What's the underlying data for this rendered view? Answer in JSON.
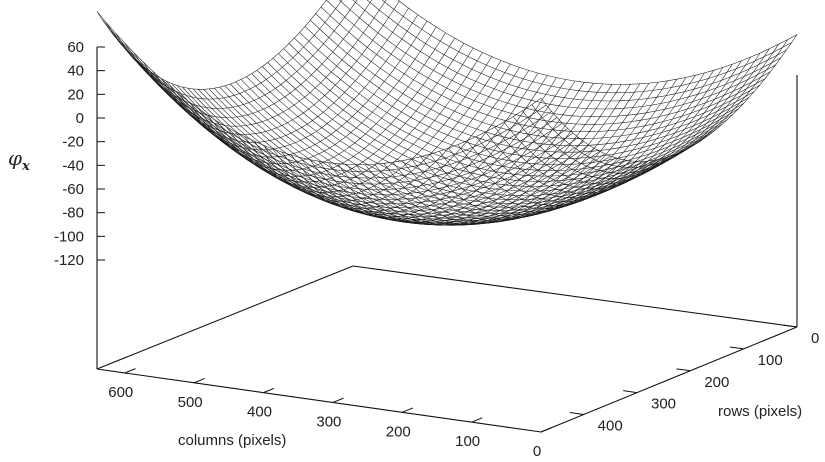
{
  "chart_data": {
    "type": "surface",
    "title": "",
    "zlabel": "φ",
    "zlabel_subscript": "x",
    "xlabel": "columns (pixels)",
    "ylabel": "rows (pixels)",
    "xlim": [
      0,
      640
    ],
    "ylim": [
      0,
      480
    ],
    "zlim": [
      -120,
      60
    ],
    "ztick_labels": [
      "60",
      "40",
      "20",
      "0",
      "-20",
      "-40",
      "-60",
      "-80",
      "-100",
      "-120"
    ],
    "xtick_labels": [
      "600",
      "500",
      "400",
      "300",
      "200",
      "100",
      "0"
    ],
    "ytick_labels": [
      "0",
      "100",
      "200",
      "300",
      "400"
    ],
    "surface": {
      "shape": "paraboloid",
      "minimum_z": -100,
      "corner_z": {
        "columns_0_rows_0": 35,
        "columns_640_rows_0": 45,
        "columns_0_rows_480": 70,
        "columns_640_rows_480": 90
      },
      "grid_lines": 48,
      "mesh_color": "#1a1a1a"
    },
    "grid": false,
    "legend": "none"
  }
}
